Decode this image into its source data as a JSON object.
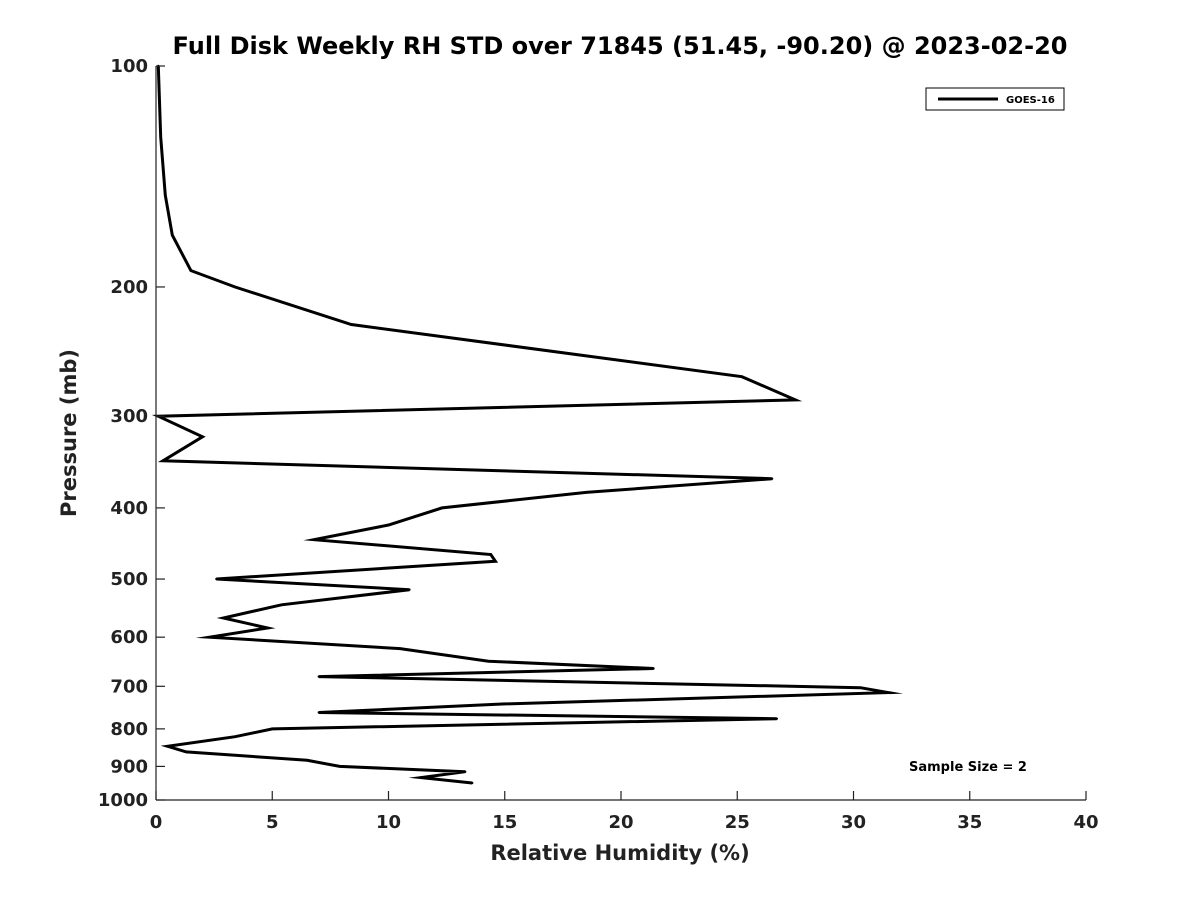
{
  "chart_data": {
    "type": "line",
    "title": "Full Disk Weekly RH STD over 71845 (51.45, -90.20) @ 2023-02-20",
    "xlabel": "Relative Humidity (%)",
    "ylabel": "Pressure (mb)",
    "xlim": [
      0,
      40
    ],
    "ylim": [
      100,
      1000
    ],
    "y_scale": "log",
    "y_reversed": true,
    "x_ticks": [
      "0",
      "5",
      "10",
      "15",
      "20",
      "25",
      "30",
      "35",
      "40"
    ],
    "y_ticks": [
      "100",
      "200",
      "300",
      "400",
      "500",
      "600",
      "700",
      "800",
      "900",
      "1000"
    ],
    "grid": false,
    "legend_position": "top-right",
    "series": [
      {
        "name": "GOES-16",
        "color": "#000000",
        "points": [
          [
            0.1,
            100
          ],
          [
            0.2,
            125
          ],
          [
            0.4,
            150
          ],
          [
            0.7,
            170
          ],
          [
            1.5,
            190
          ],
          [
            3.4,
            200
          ],
          [
            8.4,
            225
          ],
          [
            25.2,
            265
          ],
          [
            27.5,
            285
          ],
          [
            0.1,
            300
          ],
          [
            2.0,
            320
          ],
          [
            0.3,
            345
          ],
          [
            26.5,
            365
          ],
          [
            18.5,
            381
          ],
          [
            12.3,
            400
          ],
          [
            10.0,
            422
          ],
          [
            6.8,
            442
          ],
          [
            14.4,
            463
          ],
          [
            14.6,
            473
          ],
          [
            2.6,
            500
          ],
          [
            10.9,
            517
          ],
          [
            5.4,
            542
          ],
          [
            2.9,
            565
          ],
          [
            4.8,
            583
          ],
          [
            2.3,
            600
          ],
          [
            10.5,
            622
          ],
          [
            14.3,
            647
          ],
          [
            21.4,
            662
          ],
          [
            7.0,
            679
          ],
          [
            30.3,
            703
          ],
          [
            31.5,
            714
          ],
          [
            14.9,
            740
          ],
          [
            7.0,
            760
          ],
          [
            26.7,
            775
          ],
          [
            5.0,
            800
          ],
          [
            3.4,
            820
          ],
          [
            0.5,
            845
          ],
          [
            1.3,
            860
          ],
          [
            6.5,
            883
          ],
          [
            7.9,
            900
          ],
          [
            13.3,
            915
          ],
          [
            11.4,
            932
          ],
          [
            13.6,
            948
          ]
        ]
      }
    ],
    "annotations": [
      "Sample Size = 2"
    ]
  }
}
